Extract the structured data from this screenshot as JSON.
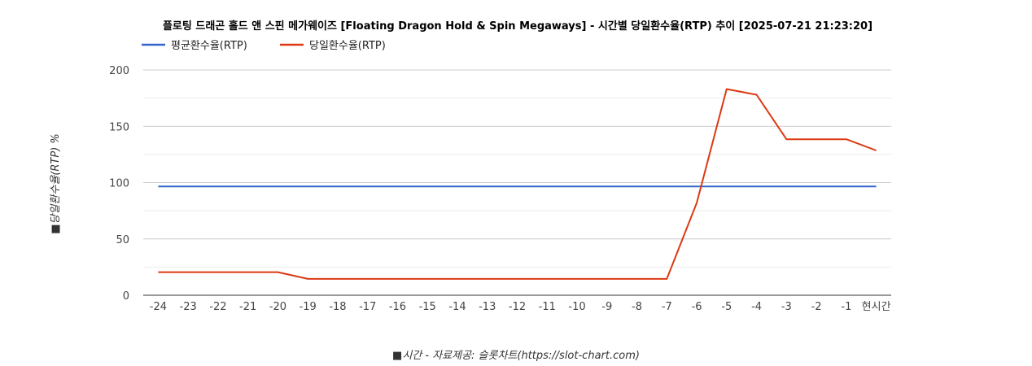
{
  "chart_data": {
    "type": "line",
    "title": "플로팅 드래곤 홀드 앤 스핀 메가웨이즈 [Floating Dragon Hold & Spin Megaways] - 시간별 당일환수율(RTP) 추이 [2025-07-21 21:23:20]",
    "xlabel": "■시간 - 자료제공: 슬롯차트(https://slot-chart.com)",
    "ylabel": "■당일환수율(RTP) %",
    "categories": [
      "-24",
      "-23",
      "-22",
      "-21",
      "-20",
      "-19",
      "-18",
      "-17",
      "-16",
      "-15",
      "-14",
      "-13",
      "-12",
      "-11",
      "-10",
      "-9",
      "-8",
      "-7",
      "-6",
      "-5",
      "-4",
      "-3",
      "-2",
      "-1",
      "현시간"
    ],
    "ylim": [
      0,
      200
    ],
    "yticks": [
      "0",
      "50",
      "100",
      "150",
      "200"
    ],
    "grid": true,
    "legend_position": "top-left",
    "series": [
      {
        "name": "평균환수율(RTP)",
        "color": "#3366cc",
        "values": [
          96.5,
          96.5,
          96.5,
          96.5,
          96.5,
          96.5,
          96.5,
          96.5,
          96.5,
          96.5,
          96.5,
          96.5,
          96.5,
          96.5,
          96.5,
          96.5,
          96.5,
          96.5,
          96.5,
          96.5,
          96.5,
          96.5,
          96.5,
          96.5,
          96.5
        ]
      },
      {
        "name": "당일환수율(RTP)",
        "color": "#dc3912",
        "values": [
          20.5,
          20.5,
          20.5,
          20.5,
          20.5,
          14.5,
          14.5,
          14.5,
          14.5,
          14.5,
          14.5,
          14.5,
          14.5,
          14.5,
          14.5,
          14.5,
          14.5,
          14.5,
          82,
          183,
          178,
          138.5,
          138.5,
          138.5,
          128.5
        ]
      }
    ]
  }
}
